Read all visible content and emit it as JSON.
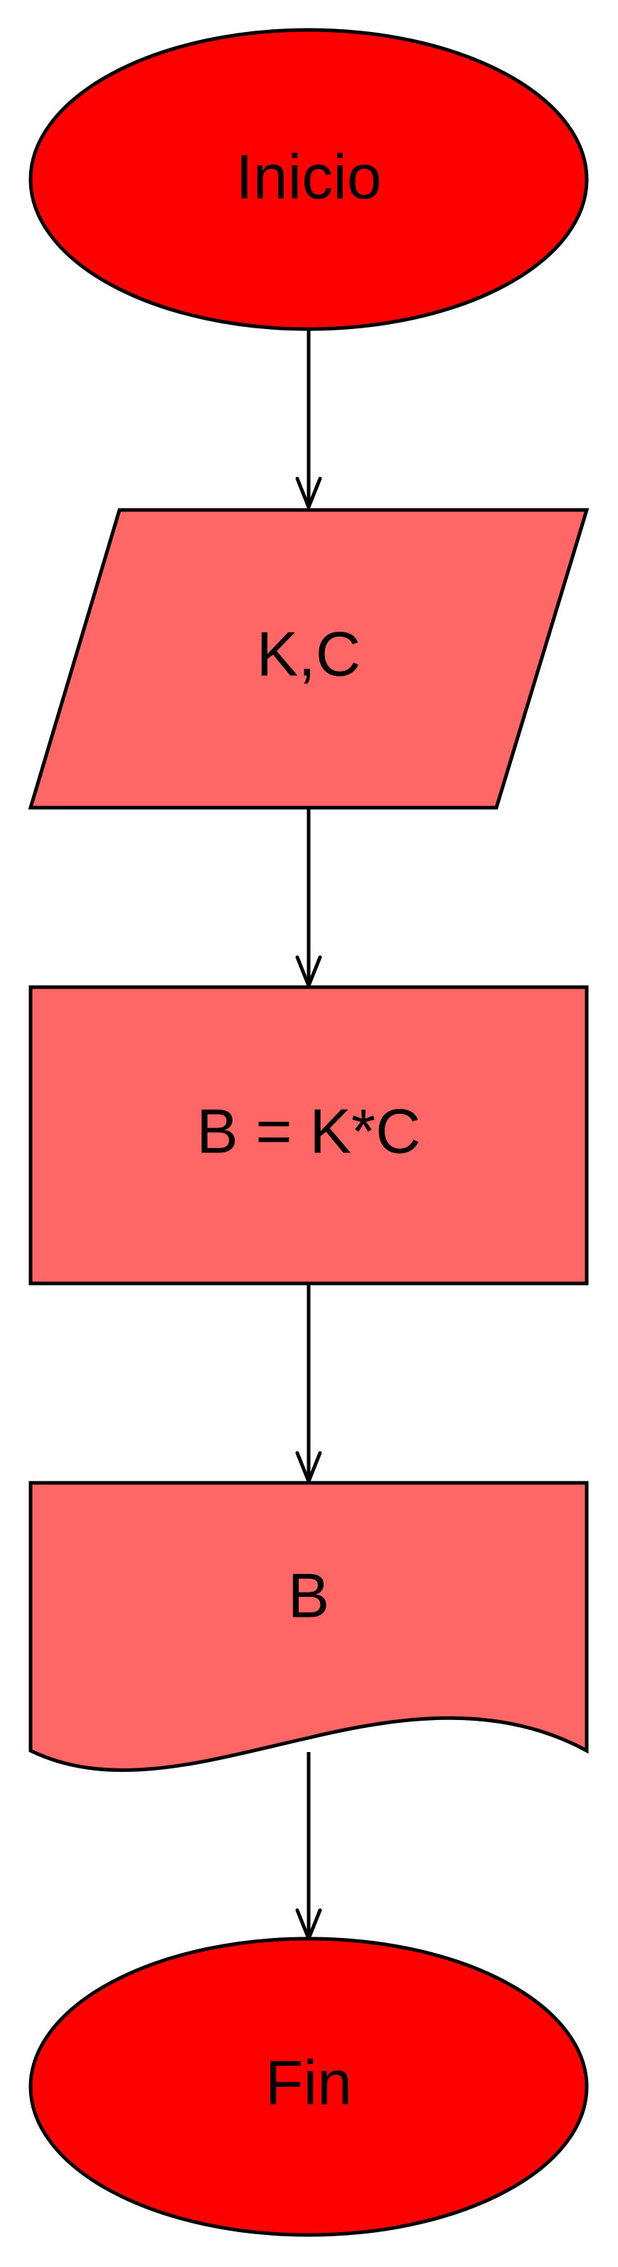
{
  "diagram": {
    "type": "flowchart",
    "colors": {
      "terminal_fill": "#ff0000",
      "process_fill": "#ff6666",
      "stroke": "#000000"
    },
    "nodes": [
      {
        "id": "start",
        "kind": "terminal",
        "label": "Inicio"
      },
      {
        "id": "input",
        "kind": "input-parallelogram",
        "label": "K,C"
      },
      {
        "id": "process",
        "kind": "process-rectangle",
        "label": "B = K*C"
      },
      {
        "id": "output",
        "kind": "document-output",
        "label": "B"
      },
      {
        "id": "end",
        "kind": "terminal",
        "label": "Fin"
      }
    ],
    "edges": [
      {
        "from": "start",
        "to": "input"
      },
      {
        "from": "input",
        "to": "process"
      },
      {
        "from": "process",
        "to": "output"
      },
      {
        "from": "output",
        "to": "end"
      }
    ]
  }
}
